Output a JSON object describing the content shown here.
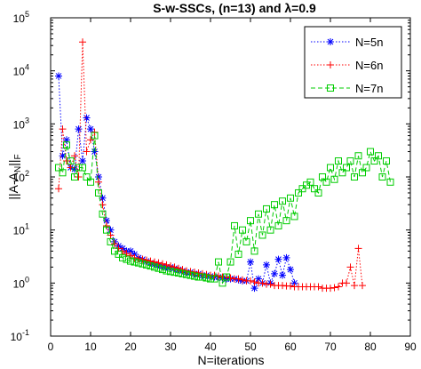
{
  "chart_data": {
    "type": "line",
    "title": "S-w-SSCs, (n=13) and λ=0.9",
    "xlabel": "N=iterations",
    "ylabel": "||A-A_N||_F",
    "xlim": [
      0,
      90
    ],
    "ylim": [
      0.1,
      100000
    ],
    "yscale": "log",
    "grid": false,
    "legend_position": "top-right",
    "x_ticks": [
      "0",
      "10",
      "20",
      "30",
      "40",
      "50",
      "60",
      "70",
      "80",
      "90"
    ],
    "y_ticks": [
      {
        "base": "10",
        "exp": "-1"
      },
      {
        "base": "10",
        "exp": "0"
      },
      {
        "base": "10",
        "exp": "1"
      },
      {
        "base": "10",
        "exp": "2"
      },
      {
        "base": "10",
        "exp": "3"
      },
      {
        "base": "10",
        "exp": "4"
      },
      {
        "base": "10",
        "exp": "5"
      }
    ],
    "series": [
      {
        "name": "N=5n",
        "color": "#0000ff",
        "line_style": "dotted",
        "marker": "asterisk",
        "x": [
          2,
          3,
          4,
          5,
          6,
          7,
          8,
          9,
          10,
          11,
          12,
          13,
          14,
          15,
          16,
          17,
          18,
          19,
          20,
          21,
          22,
          23,
          24,
          25,
          26,
          27,
          28,
          29,
          30,
          31,
          32,
          33,
          34,
          35,
          36,
          37,
          38,
          39,
          40,
          41,
          42,
          43,
          44,
          45,
          46,
          47,
          48,
          49,
          50,
          51,
          52,
          53,
          54,
          55,
          56,
          57,
          58,
          59,
          60,
          61
        ],
        "y": [
          8000,
          250,
          500,
          150,
          140,
          800,
          200,
          1300,
          800,
          300,
          100,
          40,
          15,
          10,
          6,
          5,
          4.5,
          4,
          4,
          3.5,
          3,
          2.8,
          2.6,
          2.4,
          2.3,
          2.2,
          2.1,
          2,
          2,
          1.9,
          1.8,
          1.7,
          1.6,
          1.6,
          1.5,
          1.5,
          1.4,
          1.4,
          1.35,
          1.3,
          1.3,
          1.25,
          1.2,
          1.2,
          1.2,
          1.15,
          1.1,
          1.1,
          2.5,
          0.8,
          1.2,
          1.0,
          2.2,
          1.0,
          1.5,
          2.8,
          1.4,
          3.0,
          1.8,
          1.0
        ]
      },
      {
        "name": "N=6n",
        "color": "#ff0000",
        "line_style": "dotted",
        "marker": "plus",
        "x": [
          2,
          3,
          4,
          5,
          6,
          7,
          8,
          9,
          10,
          11,
          12,
          13,
          14,
          15,
          16,
          17,
          18,
          19,
          20,
          21,
          22,
          23,
          24,
          25,
          26,
          27,
          28,
          29,
          30,
          31,
          32,
          33,
          34,
          35,
          36,
          37,
          38,
          39,
          40,
          41,
          42,
          43,
          44,
          45,
          46,
          47,
          48,
          49,
          50,
          51,
          52,
          53,
          54,
          55,
          56,
          57,
          58,
          59,
          60,
          61,
          62,
          63,
          64,
          65,
          66,
          67,
          68,
          69,
          70,
          71,
          72,
          73,
          74,
          75,
          76,
          77,
          78
        ],
        "y": [
          60,
          800,
          200,
          150,
          250,
          100,
          35000,
          300,
          500,
          700,
          80,
          30,
          12,
          8,
          5.5,
          4.5,
          4,
          3.6,
          3.3,
          3,
          2.9,
          2.8,
          2.7,
          2.6,
          2.5,
          2.4,
          2.3,
          2.2,
          2.1,
          2,
          1.9,
          1.8,
          1.7,
          1.65,
          1.6,
          1.55,
          1.5,
          1.45,
          1.4,
          1.4,
          1.35,
          1.3,
          1.3,
          1.25,
          1.2,
          1.2,
          1.15,
          1.1,
          1.1,
          1.05,
          1.0,
          1.0,
          0.95,
          0.95,
          0.9,
          0.9,
          0.9,
          0.88,
          0.88,
          0.85,
          0.85,
          0.85,
          0.85,
          0.85,
          0.85,
          0.85,
          0.8,
          0.8,
          0.8,
          0.82,
          0.85,
          1.0,
          1.0,
          2.0,
          0.9,
          4.5,
          0.9
        ]
      },
      {
        "name": "N=7n",
        "color": "#00cc00",
        "line_style": "dashed",
        "marker": "square",
        "x": [
          2,
          3,
          4,
          5,
          6,
          7,
          8,
          9,
          10,
          11,
          12,
          13,
          14,
          15,
          16,
          17,
          18,
          19,
          20,
          21,
          22,
          23,
          24,
          25,
          26,
          27,
          28,
          29,
          30,
          31,
          32,
          33,
          34,
          35,
          36,
          37,
          38,
          39,
          40,
          41,
          42,
          43,
          44,
          45,
          46,
          47,
          48,
          49,
          50,
          51,
          52,
          53,
          54,
          55,
          56,
          57,
          58,
          59,
          60,
          61,
          62,
          63,
          64,
          65,
          66,
          67,
          68,
          69,
          70,
          71,
          72,
          73,
          74,
          75,
          76,
          77,
          78,
          79,
          80,
          81,
          82,
          83,
          84,
          85
        ],
        "y": [
          150,
          120,
          400,
          200,
          100,
          150,
          150,
          100,
          80,
          600,
          50,
          20,
          10,
          6,
          4,
          3.5,
          3,
          2.8,
          2.6,
          2.5,
          2.4,
          2.3,
          2.2,
          2.1,
          2,
          1.9,
          1.8,
          1.7,
          1.65,
          1.6,
          1.55,
          1.5,
          1.45,
          1.4,
          1.35,
          1.3,
          1.3,
          1.25,
          1.2,
          1.2,
          2.5,
          1.0,
          1.3,
          2.5,
          12,
          3.5,
          10,
          6,
          15,
          4,
          20,
          8,
          25,
          10,
          30,
          12,
          35,
          15,
          40,
          18,
          50,
          60,
          70,
          80,
          60,
          50,
          100,
          80,
          150,
          90,
          200,
          120,
          150,
          200,
          100,
          250,
          120,
          150,
          300,
          200,
          250,
          100,
          200,
          80
        ]
      }
    ]
  }
}
